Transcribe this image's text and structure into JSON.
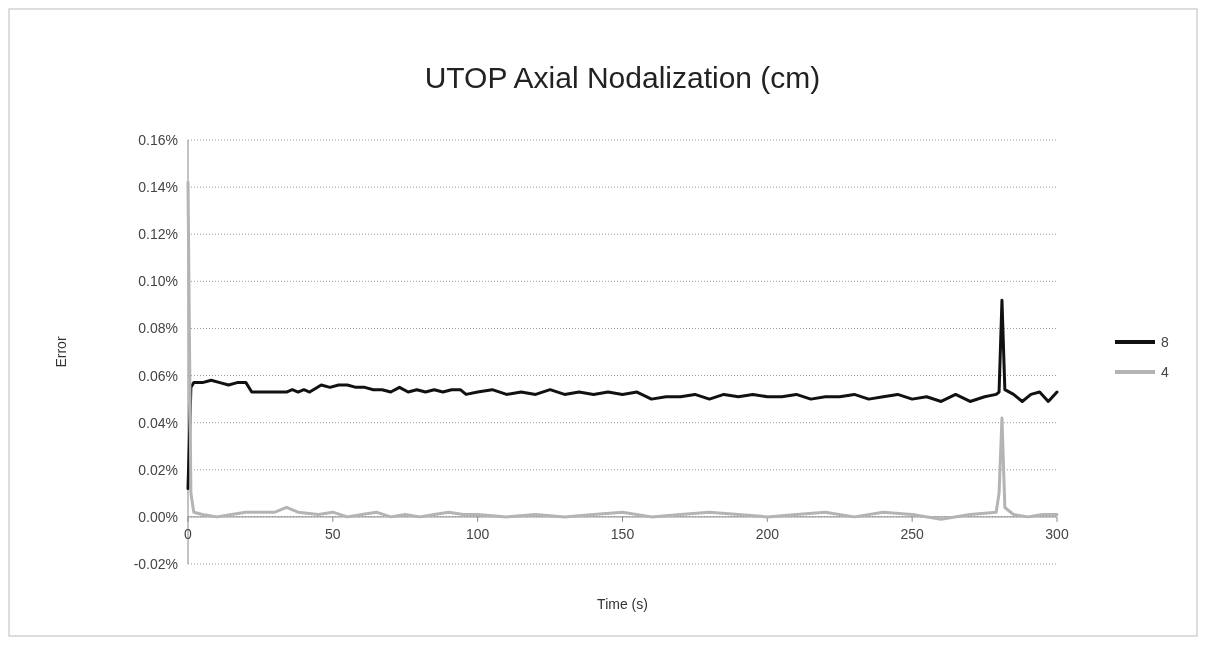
{
  "chart_data": {
    "type": "line",
    "title": "UTOP Axial Nodalization (cm)",
    "xlabel": "Time (s)",
    "ylabel": "Error",
    "xlim": [
      0,
      300
    ],
    "xticks": [
      0,
      50,
      100,
      150,
      200,
      250,
      300
    ],
    "ylim": [
      -0.02,
      0.16
    ],
    "yticks": [
      {
        "value": -0.02,
        "label": "-0.02%"
      },
      {
        "value": 0,
        "label": "0.00%"
      },
      {
        "value": 0.02,
        "label": "0.02%"
      },
      {
        "value": 0.04,
        "label": "0.04%"
      },
      {
        "value": 0.06,
        "label": "0.06%"
      },
      {
        "value": 0.08,
        "label": "0.08%"
      },
      {
        "value": 0.1,
        "label": "0.10%"
      },
      {
        "value": 0.12,
        "label": "0.12%"
      },
      {
        "value": 0.14,
        "label": "0.14%"
      },
      {
        "value": 0.16,
        "label": "0.16%"
      }
    ],
    "grid": "y",
    "legend": "right",
    "marker": "none",
    "line_style": "solid",
    "series": [
      {
        "name": "8",
        "color": "#111111",
        "x": [
          0,
          1,
          2,
          5,
          8,
          11,
          14,
          17,
          20,
          22,
          34,
          36,
          38,
          40,
          42,
          46,
          49,
          52,
          55,
          58,
          61,
          64,
          67,
          70,
          73,
          76,
          79,
          82,
          85,
          88,
          91,
          94,
          96,
          100,
          105,
          110,
          115,
          120,
          125,
          130,
          135,
          140,
          145,
          150,
          155,
          160,
          165,
          170,
          175,
          180,
          185,
          190,
          195,
          200,
          205,
          210,
          215,
          220,
          225,
          230,
          235,
          240,
          245,
          250,
          255,
          260,
          265,
          270,
          275,
          279,
          280,
          281,
          282,
          285,
          288,
          291,
          294,
          297,
          300
        ],
        "values": [
          0.012,
          0.055,
          0.057,
          0.057,
          0.058,
          0.057,
          0.056,
          0.057,
          0.057,
          0.053,
          0.053,
          0.054,
          0.053,
          0.054,
          0.053,
          0.056,
          0.055,
          0.056,
          0.056,
          0.055,
          0.055,
          0.054,
          0.054,
          0.053,
          0.055,
          0.053,
          0.054,
          0.053,
          0.054,
          0.053,
          0.054,
          0.054,
          0.052,
          0.053,
          0.054,
          0.052,
          0.053,
          0.052,
          0.054,
          0.052,
          0.053,
          0.052,
          0.053,
          0.052,
          0.053,
          0.05,
          0.051,
          0.051,
          0.052,
          0.05,
          0.052,
          0.051,
          0.052,
          0.051,
          0.051,
          0.052,
          0.05,
          0.051,
          0.051,
          0.052,
          0.05,
          0.051,
          0.052,
          0.05,
          0.051,
          0.049,
          0.052,
          0.049,
          0.051,
          0.052,
          0.053,
          0.092,
          0.054,
          0.052,
          0.049,
          0.052,
          0.053,
          0.049,
          0.053
        ]
      },
      {
        "name": "4",
        "color": "#b4b4b4",
        "x": [
          0,
          1,
          2,
          5,
          10,
          15,
          20,
          25,
          30,
          34,
          38,
          45,
          50,
          55,
          60,
          65,
          70,
          75,
          80,
          85,
          90,
          95,
          100,
          110,
          120,
          130,
          140,
          150,
          160,
          170,
          180,
          190,
          200,
          210,
          220,
          230,
          240,
          250,
          260,
          270,
          279,
          280,
          281,
          282,
          285,
          290,
          295,
          300
        ],
        "values": [
          0.142,
          0.01,
          0.002,
          0.001,
          0,
          0.001,
          0.002,
          0.002,
          0.002,
          0.004,
          0.002,
          0.001,
          0.002,
          0,
          0.001,
          0.002,
          0,
          0.001,
          0,
          0.001,
          0.002,
          0.001,
          0.001,
          0,
          0.001,
          0,
          0.001,
          0.002,
          0,
          0.001,
          0.002,
          0.001,
          0,
          0.001,
          0.002,
          0,
          0.002,
          0.001,
          -0.001,
          0.001,
          0.002,
          0.01,
          0.042,
          0.004,
          0.001,
          0,
          0.001,
          0.001
        ]
      }
    ]
  }
}
